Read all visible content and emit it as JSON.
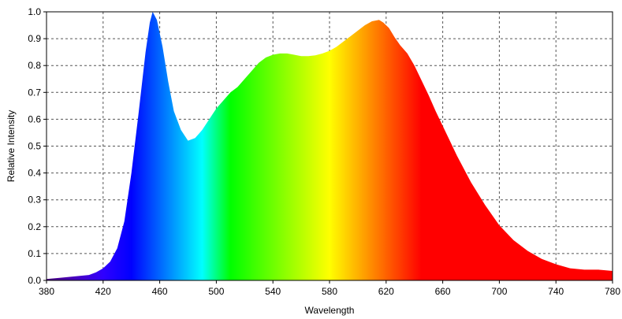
{
  "chart_data": {
    "type": "area",
    "title": "",
    "xlabel": "Wavelength",
    "ylabel": "Relative Intensity",
    "xlim": [
      380,
      780
    ],
    "ylim": [
      0,
      1.0
    ],
    "xticks": [
      380,
      420,
      460,
      500,
      540,
      580,
      620,
      660,
      700,
      740,
      780
    ],
    "yticks": [
      0.0,
      0.1,
      0.2,
      0.3,
      0.4,
      0.5,
      0.6,
      0.7,
      0.8,
      0.9,
      1.0
    ],
    "xtick_labels": [
      "380",
      "420",
      "460",
      "500",
      "540",
      "580",
      "620",
      "660",
      "700",
      "740",
      "780"
    ],
    "ytick_labels": [
      "0.0",
      "0.1",
      "0.2",
      "0.3",
      "0.4",
      "0.5",
      "0.6",
      "0.7",
      "0.8",
      "0.9",
      "1.0"
    ],
    "grid": true,
    "fill": "spectral colors by wavelength",
    "series": [
      {
        "x": [
          380,
          390,
          400,
          410,
          415,
          420,
          425,
          430,
          435,
          440,
          445,
          450,
          453,
          455,
          458,
          462,
          466,
          470,
          475,
          480,
          485,
          490,
          495,
          500,
          505,
          510,
          515,
          520,
          525,
          530,
          535,
          540,
          545,
          550,
          555,
          560,
          565,
          570,
          575,
          580,
          585,
          590,
          595,
          600,
          605,
          610,
          615,
          618,
          622,
          626,
          630,
          635,
          640,
          645,
          650,
          655,
          660,
          665,
          670,
          680,
          690,
          700,
          710,
          720,
          730,
          740,
          750,
          760,
          770,
          780
        ],
        "y": [
          0.005,
          0.01,
          0.015,
          0.02,
          0.03,
          0.045,
          0.07,
          0.12,
          0.22,
          0.4,
          0.62,
          0.85,
          0.96,
          1.0,
          0.97,
          0.87,
          0.74,
          0.63,
          0.56,
          0.52,
          0.53,
          0.56,
          0.6,
          0.64,
          0.67,
          0.7,
          0.72,
          0.75,
          0.78,
          0.81,
          0.83,
          0.84,
          0.845,
          0.845,
          0.84,
          0.835,
          0.835,
          0.838,
          0.845,
          0.855,
          0.87,
          0.89,
          0.91,
          0.93,
          0.95,
          0.965,
          0.97,
          0.96,
          0.94,
          0.905,
          0.875,
          0.845,
          0.8,
          0.745,
          0.69,
          0.63,
          0.575,
          0.52,
          0.465,
          0.365,
          0.28,
          0.205,
          0.15,
          0.11,
          0.08,
          0.06,
          0.045,
          0.04,
          0.04,
          0.035
        ]
      }
    ]
  }
}
